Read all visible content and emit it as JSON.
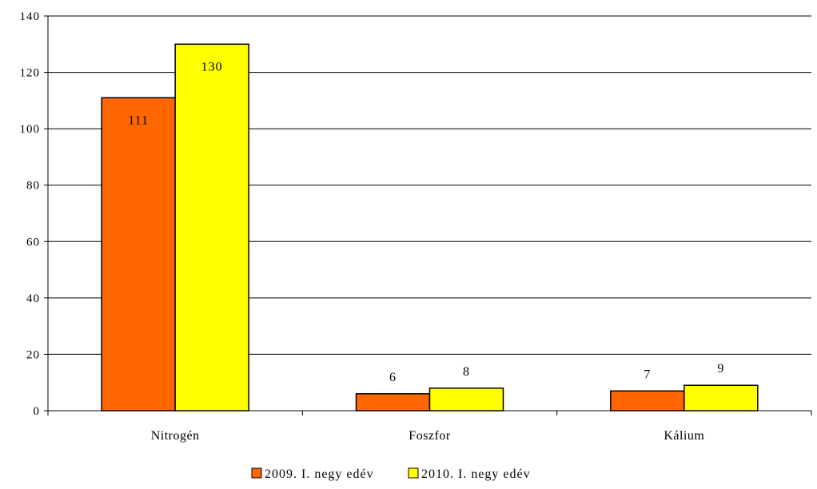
{
  "chart_data": {
    "type": "bar",
    "categories": [
      "Nitrogén",
      "Foszfor",
      "Kálium"
    ],
    "series": [
      {
        "name": "2009. I. negy edév",
        "values": [
          111,
          6,
          7
        ],
        "color": "#ff6600"
      },
      {
        "name": "2010. I. negy edév",
        "values": [
          130,
          8,
          9
        ],
        "color": "#ffff00"
      }
    ],
    "ylim": [
      0,
      140
    ],
    "yticks": [
      0,
      20,
      40,
      60,
      80,
      100,
      120,
      140
    ],
    "grid": true,
    "legend_position": "bottom-center",
    "title": "",
    "xlabel": "",
    "ylabel": ""
  }
}
